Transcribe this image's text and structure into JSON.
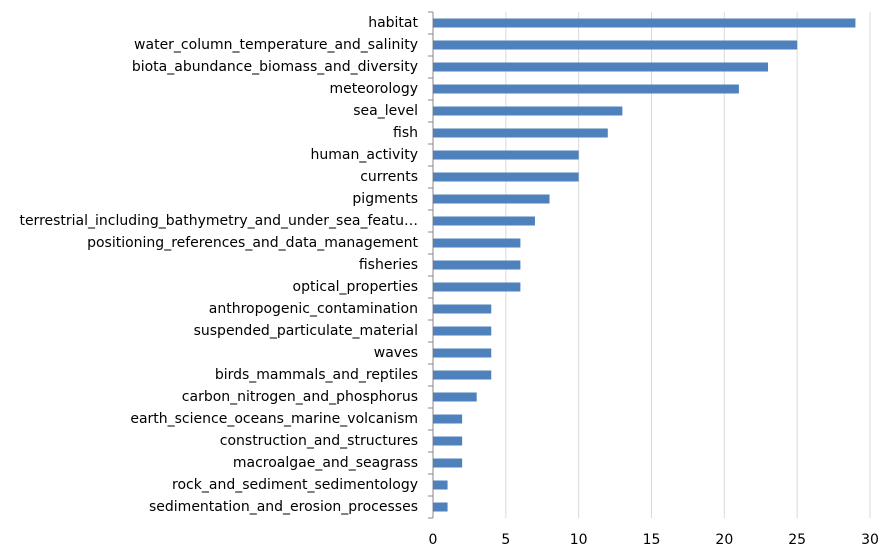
{
  "chart_data": {
    "type": "hbar",
    "categories": [
      "habitat",
      "water_column_temperature_and_salinity",
      "biota_abundance_biomass_and_diversity",
      "meteorology",
      "sea_level",
      "fish",
      "human_activity",
      "currents",
      "pigments",
      "terrestrial_including_bathymetry_and_under_sea_featu…",
      "positioning_references_and_data_management",
      "fisheries",
      "optical_properties",
      "anthropogenic_contamination",
      "suspended_particulate_material",
      "waves",
      "birds_mammals_and_reptiles",
      "carbon_nitrogen_and_phosphorus",
      "earth_science_oceans_marine_volcanism",
      "construction_and_structures",
      "macroalgae_and_seagrass",
      "rock_and_sediment_sedimentology",
      "sedimentation_and_erosion_processes"
    ],
    "values": [
      29,
      25,
      23,
      21,
      13,
      12,
      10,
      10,
      8,
      7,
      6,
      6,
      6,
      4,
      4,
      4,
      4,
      3,
      2,
      2,
      2,
      1,
      1
    ],
    "color": "#4f81bd",
    "xlim": [
      0,
      30
    ],
    "xticks": [
      0,
      5,
      10,
      15,
      20,
      25,
      30
    ],
    "grid": true
  }
}
